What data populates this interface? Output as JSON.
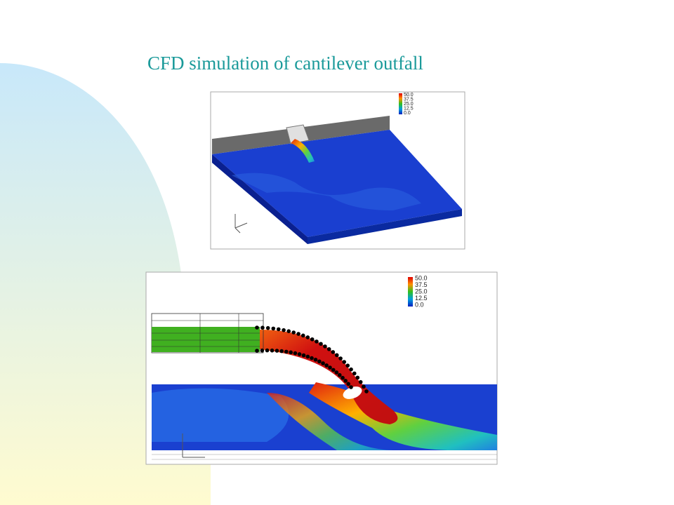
{
  "title": "CFD simulation of cantilever outfall",
  "figures": [
    {
      "legend": [
        "50.0",
        "37.5",
        "25.0",
        "12.5",
        "0.0"
      ]
    },
    {
      "legend": [
        "50.0",
        "37.5",
        "25.0",
        "12.5",
        "0.0"
      ]
    }
  ]
}
